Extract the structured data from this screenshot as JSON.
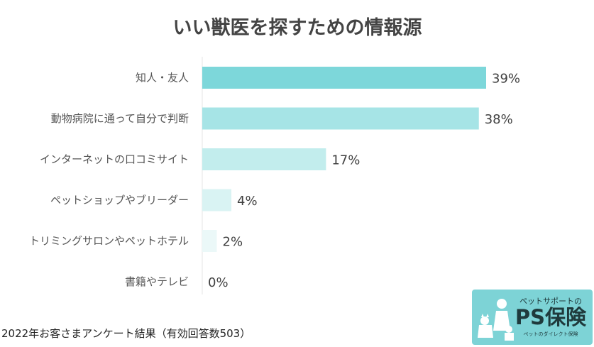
{
  "chart_data": {
    "type": "bar",
    "orientation": "horizontal",
    "title": "いい獣医を探すための情報源",
    "categories": [
      "知人・友人",
      "動物病院に通って自分で判断",
      "インターネットの口コミサイト",
      "ペットショップやブリーダー",
      "トリミングサロンやペットホテル",
      "書籍やテレビ"
    ],
    "values": [
      39,
      38,
      17,
      4,
      2,
      0
    ],
    "value_labels": [
      "39%",
      "38%",
      "17%",
      "4%",
      "2%",
      "0%"
    ],
    "unit": "%",
    "xlim": [
      0,
      39
    ],
    "grid": false,
    "legend": "none",
    "colors": [
      "#7dd7da",
      "#a6e4e6",
      "#c2eded",
      "#d9f3f3",
      "#ebf8f8",
      "#f4fbfb"
    ]
  },
  "footnote": "2022年お客さまアンケート結果（有効回答数503）",
  "logo": {
    "tagline": "ペットサポートの",
    "name": "PS保険",
    "sub": "ペットのダイレクト保険",
    "background": "#7dd3d6"
  }
}
